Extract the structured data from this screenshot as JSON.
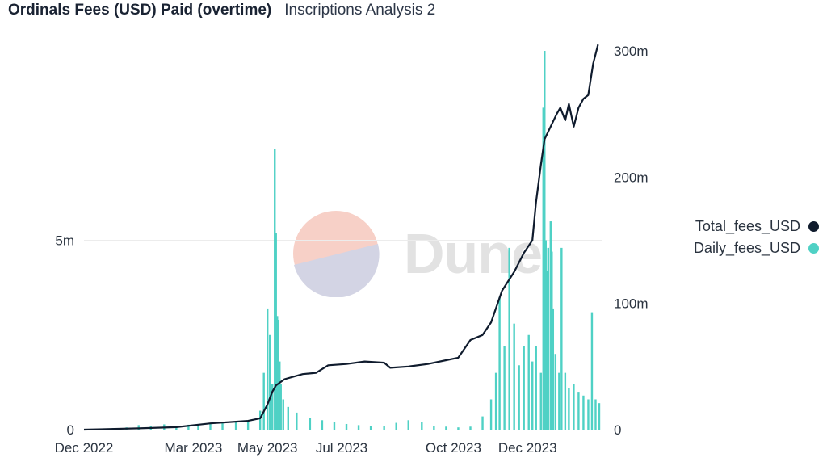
{
  "header": {
    "title": "Ordinals Fees (USD) Paid (overtime)",
    "subtitle": "Inscriptions Analysis 2"
  },
  "watermark": {
    "text": "Dune"
  },
  "legend": [
    {
      "label": "Total_fees_USD",
      "color": "#0f1b2d"
    },
    {
      "label": "Daily_fees_USD",
      "color": "#4fd1c5"
    }
  ],
  "chart_data": {
    "type": "bar",
    "x_start": "2022-12-01",
    "x_end": "2024-01-31",
    "x_ticks": [
      {
        "label": "Dec 2022",
        "date": "2022-12-01"
      },
      {
        "label": "Mar 2023",
        "date": "2023-03-01"
      },
      {
        "label": "May 2023",
        "date": "2023-05-01"
      },
      {
        "label": "Jul 2023",
        "date": "2023-07-01"
      },
      {
        "label": "Oct 2023",
        "date": "2023-10-01"
      },
      {
        "label": "Dec 2023",
        "date": "2023-12-01"
      }
    ],
    "y_left": {
      "ylim": [
        0,
        10000000
      ],
      "ticks": [
        {
          "value": 0,
          "label": "0"
        },
        {
          "value": 5000000,
          "label": "5m"
        }
      ]
    },
    "y_right": {
      "ylim": [
        0,
        300000000
      ],
      "ticks": [
        {
          "value": 0,
          "label": "0"
        },
        {
          "value": 100000000,
          "label": "100m"
        },
        {
          "value": 200000000,
          "label": "200m"
        },
        {
          "value": 300000000,
          "label": "300m"
        }
      ]
    },
    "series": [
      {
        "name": "Daily_fees_USD",
        "type": "bar",
        "axis": "left",
        "color": "#4fd1c5",
        "points": [
          [
            "2022-12-10",
            20000
          ],
          [
            "2022-12-25",
            40000
          ],
          [
            "2023-01-05",
            60000
          ],
          [
            "2023-01-15",
            120000
          ],
          [
            "2023-01-25",
            90000
          ],
          [
            "2023-02-05",
            140000
          ],
          [
            "2023-02-15",
            100000
          ],
          [
            "2023-02-25",
            130000
          ],
          [
            "2023-03-05",
            150000
          ],
          [
            "2023-03-15",
            180000
          ],
          [
            "2023-03-25",
            200000
          ],
          [
            "2023-04-05",
            220000
          ],
          [
            "2023-04-15",
            250000
          ],
          [
            "2023-04-25",
            500000
          ],
          [
            "2023-04-28",
            1500000
          ],
          [
            "2023-05-01",
            3200000
          ],
          [
            "2023-05-03",
            2500000
          ],
          [
            "2023-05-05",
            1200000
          ],
          [
            "2023-05-07",
            7400000
          ],
          [
            "2023-05-08",
            5200000
          ],
          [
            "2023-05-09",
            3000000
          ],
          [
            "2023-05-10",
            2900000
          ],
          [
            "2023-05-11",
            1800000
          ],
          [
            "2023-05-12",
            1200000
          ],
          [
            "2023-05-14",
            800000
          ],
          [
            "2023-05-18",
            600000
          ],
          [
            "2023-05-25",
            450000
          ],
          [
            "2023-06-05",
            300000
          ],
          [
            "2023-06-15",
            250000
          ],
          [
            "2023-06-25",
            200000
          ],
          [
            "2023-07-05",
            150000
          ],
          [
            "2023-07-15",
            120000
          ],
          [
            "2023-07-25",
            100000
          ],
          [
            "2023-08-05",
            90000
          ],
          [
            "2023-08-15",
            180000
          ],
          [
            "2023-08-25",
            250000
          ],
          [
            "2023-09-05",
            200000
          ],
          [
            "2023-09-15",
            100000
          ],
          [
            "2023-09-25",
            80000
          ],
          [
            "2023-10-05",
            60000
          ],
          [
            "2023-10-15",
            80000
          ],
          [
            "2023-10-25",
            350000
          ],
          [
            "2023-11-01",
            800000
          ],
          [
            "2023-11-05",
            1500000
          ],
          [
            "2023-11-08",
            3500000
          ],
          [
            "2023-11-12",
            2200000
          ],
          [
            "2023-11-16",
            4800000
          ],
          [
            "2023-11-20",
            2800000
          ],
          [
            "2023-11-24",
            1700000
          ],
          [
            "2023-11-28",
            2200000
          ],
          [
            "2023-12-02",
            2500000
          ],
          [
            "2023-12-05",
            1800000
          ],
          [
            "2023-12-08",
            2200000
          ],
          [
            "2023-12-12",
            1500000
          ],
          [
            "2023-12-14",
            8500000
          ],
          [
            "2023-12-15",
            10000000
          ],
          [
            "2023-12-16",
            5000000
          ],
          [
            "2023-12-17",
            4200000
          ],
          [
            "2023-12-18",
            4800000
          ],
          [
            "2023-12-20",
            5500000
          ],
          [
            "2023-12-21",
            4700000
          ],
          [
            "2023-12-22",
            3200000
          ],
          [
            "2023-12-24",
            2000000
          ],
          [
            "2023-12-27",
            1500000
          ],
          [
            "2023-12-29",
            4800000
          ],
          [
            "2024-01-01",
            1500000
          ],
          [
            "2024-01-04",
            1100000
          ],
          [
            "2024-01-08",
            1200000
          ],
          [
            "2024-01-12",
            1000000
          ],
          [
            "2024-01-16",
            900000
          ],
          [
            "2024-01-20",
            800000
          ],
          [
            "2024-01-23",
            3100000
          ],
          [
            "2024-01-26",
            800000
          ],
          [
            "2024-01-29",
            700000
          ]
        ]
      },
      {
        "name": "Total_fees_USD",
        "type": "line",
        "axis": "right",
        "color": "#0f1b2d",
        "points": [
          [
            "2022-12-01",
            0
          ],
          [
            "2023-01-15",
            1000000
          ],
          [
            "2023-02-15",
            2000000
          ],
          [
            "2023-03-15",
            5000000
          ],
          [
            "2023-04-15",
            7000000
          ],
          [
            "2023-04-25",
            9000000
          ],
          [
            "2023-05-01",
            20000000
          ],
          [
            "2023-05-05",
            30000000
          ],
          [
            "2023-05-08",
            35000000
          ],
          [
            "2023-05-15",
            40000000
          ],
          [
            "2023-05-30",
            44000000
          ],
          [
            "2023-06-10",
            45000000
          ],
          [
            "2023-06-20",
            51000000
          ],
          [
            "2023-07-05",
            52000000
          ],
          [
            "2023-07-20",
            54000000
          ],
          [
            "2023-08-05",
            53000000
          ],
          [
            "2023-08-10",
            49000000
          ],
          [
            "2023-08-25",
            50000000
          ],
          [
            "2023-09-10",
            52000000
          ],
          [
            "2023-09-25",
            55000000
          ],
          [
            "2023-10-05",
            57000000
          ],
          [
            "2023-10-15",
            71000000
          ],
          [
            "2023-10-25",
            75000000
          ],
          [
            "2023-11-01",
            85000000
          ],
          [
            "2023-11-10",
            110000000
          ],
          [
            "2023-11-20",
            125000000
          ],
          [
            "2023-11-28",
            140000000
          ],
          [
            "2023-12-05",
            150000000
          ],
          [
            "2023-12-08",
            180000000
          ],
          [
            "2023-12-12",
            210000000
          ],
          [
            "2023-12-15",
            230000000
          ],
          [
            "2023-12-20",
            240000000
          ],
          [
            "2023-12-25",
            250000000
          ],
          [
            "2023-12-28",
            255000000
          ],
          [
            "2024-01-01",
            245000000
          ],
          [
            "2024-01-04",
            258000000
          ],
          [
            "2024-01-08",
            240000000
          ],
          [
            "2024-01-12",
            255000000
          ],
          [
            "2024-01-16",
            262000000
          ],
          [
            "2024-01-20",
            265000000
          ],
          [
            "2024-01-24",
            290000000
          ],
          [
            "2024-01-28",
            305000000
          ]
        ]
      }
    ]
  }
}
